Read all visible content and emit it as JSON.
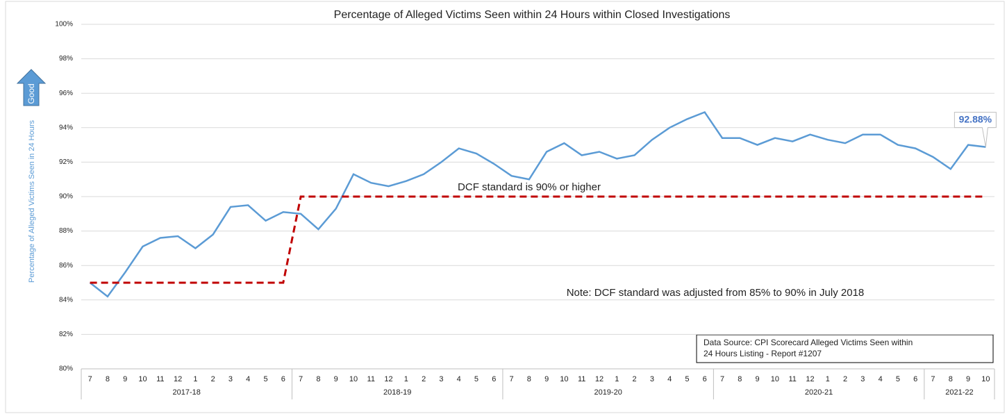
{
  "chart_data": {
    "type": "line",
    "title": "Percentage of Alleged Victims Seen within 24 Hours within Closed Investigations",
    "y_label": "Percentage of Alleged Victims Seen in 24 Hours",
    "good_label": "Good",
    "category_groups": [
      {
        "name": "2017-18",
        "categories": [
          "7",
          "8",
          "9",
          "10",
          "11",
          "12",
          "1",
          "2",
          "3",
          "4",
          "5",
          "6"
        ]
      },
      {
        "name": "2018-19",
        "categories": [
          "7",
          "8",
          "9",
          "10",
          "11",
          "12",
          "1",
          "2",
          "3",
          "4",
          "5",
          "6"
        ]
      },
      {
        "name": "2019-20",
        "categories": [
          "7",
          "8",
          "9",
          "10",
          "11",
          "12",
          "1",
          "2",
          "3",
          "4",
          "5",
          "6"
        ]
      },
      {
        "name": "2020-21",
        "categories": [
          "7",
          "8",
          "9",
          "10",
          "11",
          "12",
          "1",
          "2",
          "3",
          "4",
          "5",
          "6"
        ]
      },
      {
        "name": "2021-22",
        "categories": [
          "7",
          "8",
          "9",
          "10"
        ]
      }
    ],
    "series": [
      {
        "color": "#5b9bd5",
        "dash": false,
        "values": [
          85.0,
          84.2,
          85.6,
          87.1,
          87.6,
          87.7,
          87.0,
          87.8,
          89.4,
          89.5,
          88.6,
          89.1,
          89.0,
          88.1,
          89.3,
          91.3,
          90.8,
          90.6,
          90.9,
          91.3,
          92.0,
          92.8,
          92.5,
          91.9,
          91.2,
          91.0,
          92.6,
          93.1,
          92.4,
          92.6,
          92.2,
          92.4,
          93.3,
          94.0,
          94.5,
          94.9,
          93.4,
          93.4,
          93.0,
          93.4,
          93.2,
          93.6,
          93.3,
          93.1,
          93.6,
          93.6,
          93.0,
          92.8,
          92.3,
          91.6,
          93.0,
          92.88
        ],
        "value_labels": [
          null,
          null,
          null,
          null,
          null,
          null,
          null,
          null,
          null,
          null,
          null,
          null,
          null,
          null,
          null,
          null,
          null,
          null,
          null,
          null,
          null,
          null,
          null,
          null,
          null,
          null,
          null,
          null,
          null,
          null,
          null,
          null,
          null,
          null,
          null,
          null,
          null,
          null,
          null,
          null,
          null,
          null,
          null,
          null,
          null,
          null,
          null,
          null,
          null,
          null,
          null,
          "92.88%"
        ]
      },
      {
        "color": "#c00000",
        "dash": true,
        "values": [
          85,
          85,
          85,
          85,
          85,
          85,
          85,
          85,
          85,
          85,
          85,
          85,
          90,
          90,
          90,
          90,
          90,
          90,
          90,
          90,
          90,
          90,
          90,
          90,
          90,
          90,
          90,
          90,
          90,
          90,
          90,
          90,
          90,
          90,
          90,
          90,
          90,
          90,
          90,
          90,
          90,
          90,
          90,
          90,
          90,
          90,
          90,
          90,
          90,
          90,
          90,
          90
        ]
      }
    ],
    "ylim": [
      80,
      100
    ],
    "yticks": [
      {
        "value": 80,
        "label": "80%"
      },
      {
        "value": 82,
        "label": "82%"
      },
      {
        "value": 84,
        "label": "84%"
      },
      {
        "value": 86,
        "label": "86%"
      },
      {
        "value": 88,
        "label": "88%"
      },
      {
        "value": 90,
        "label": "90%"
      },
      {
        "value": 92,
        "label": "92%"
      },
      {
        "value": 94,
        "label": "94%"
      },
      {
        "value": 96,
        "label": "96%"
      },
      {
        "value": 98,
        "label": "98%"
      },
      {
        "value": 100,
        "label": "100%"
      }
    ],
    "grid": true,
    "annotations": [
      "DCF standard is 90% or higher",
      "Note: DCF standard was adjusted from 85% to 90% in July 2018"
    ],
    "source": [
      "Data Source: CPI Scorecard Alleged Victims Seen within",
      "24 Hours Listing - Report #1207"
    ]
  }
}
